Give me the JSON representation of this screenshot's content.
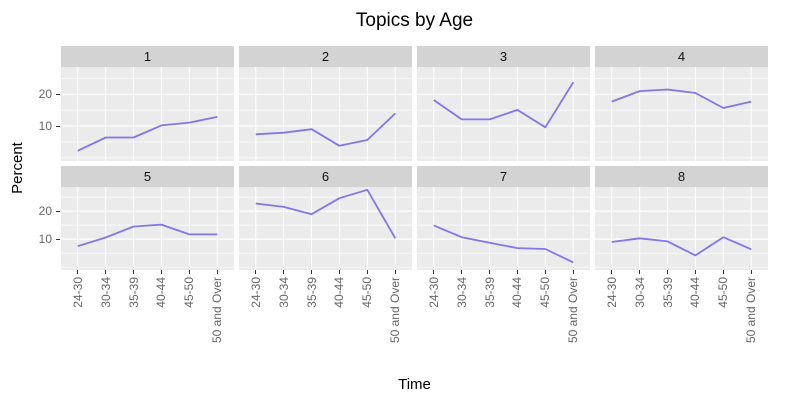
{
  "chart_data": {
    "type": "line",
    "title": "Topics by Age",
    "xlabel": "Time",
    "ylabel": "Percent",
    "categories": [
      "24-30",
      "30-34",
      "35-39",
      "40-44",
      "45-50",
      "50 and Over"
    ],
    "facets": [
      {
        "label": "1",
        "values": [
          2.2,
          6.4,
          6.4,
          10.2,
          11.1,
          12.9
        ]
      },
      {
        "label": "2",
        "values": [
          7.4,
          7.9,
          9.0,
          3.8,
          5.6,
          14.0
        ]
      },
      {
        "label": "3",
        "values": [
          18.2,
          12.1,
          12.1,
          15.1,
          9.6,
          23.8
        ]
      },
      {
        "label": "4",
        "values": [
          17.7,
          21.0,
          21.5,
          20.4,
          15.7,
          17.7
        ]
      },
      {
        "label": "5",
        "values": [
          7.5,
          10.6,
          14.5,
          15.2,
          11.7,
          11.7
        ]
      },
      {
        "label": "6",
        "values": [
          22.7,
          21.5,
          18.9,
          24.6,
          27.6,
          10.3
        ]
      },
      {
        "label": "7",
        "values": [
          14.9,
          10.7,
          8.7,
          6.8,
          6.5,
          1.7
        ]
      },
      {
        "label": "8",
        "values": [
          9.0,
          10.3,
          9.2,
          4.2,
          10.7,
          6.4
        ]
      }
    ],
    "ylim": [
      -1,
      28.6
    ],
    "y_major_ticks": [
      {
        "label": "20",
        "value": 20
      },
      {
        "label": "10",
        "value": 10
      }
    ],
    "y_minor_ticks": [
      0,
      5,
      15,
      25
    ],
    "grid": true,
    "legend": "none",
    "colors": {
      "line": "#8276E8",
      "panel_background": "#EBEBEB",
      "strip_background": "#D3D3D3",
      "gridline": "#FFFFFF",
      "axis_text": "#666666",
      "tick_mark": "#333333",
      "title_text": "#000000"
    }
  }
}
